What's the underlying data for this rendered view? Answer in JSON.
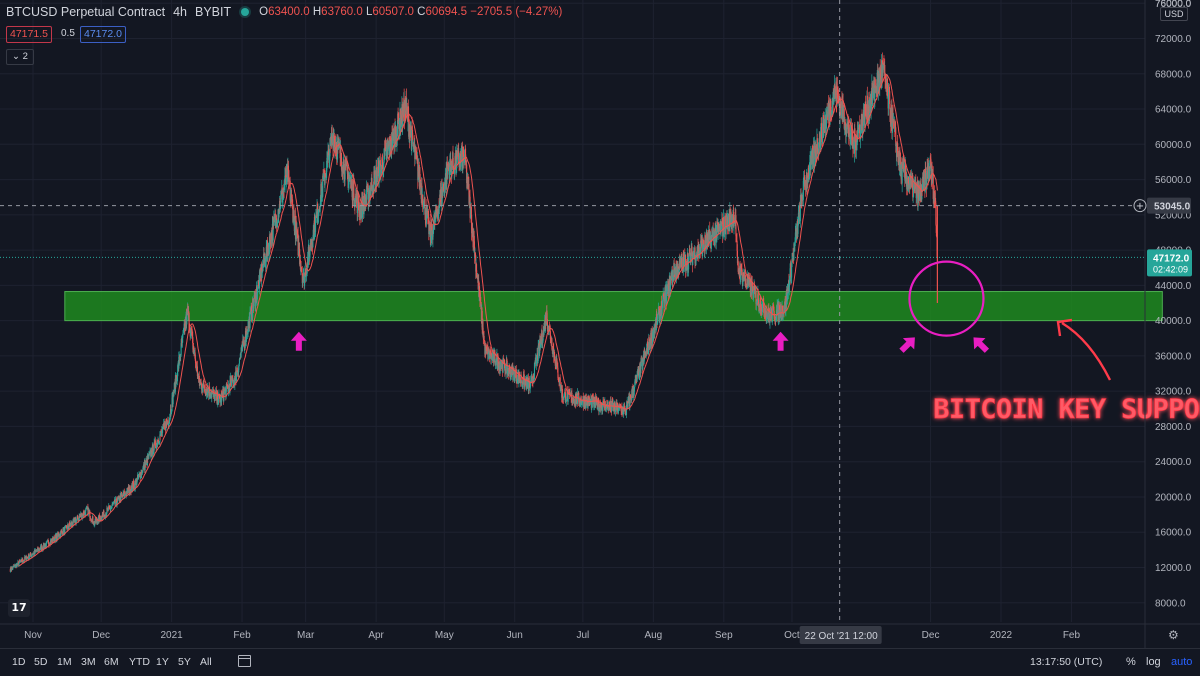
{
  "header": {
    "symbol": "BTCUSD Perpetual Contract",
    "interval": "4h",
    "exchange": "BYBIT",
    "open_label": "O",
    "open": "63400.0",
    "high_label": "H",
    "high": "63760.0",
    "low_label": "L",
    "low": "60507.0",
    "close_label": "C",
    "close": "60694.5",
    "change": "−2705.5 (−4.27%)"
  },
  "order_box": {
    "sell": "47171.5",
    "spread": "0.5",
    "buy": "47172.0"
  },
  "indicators_count": "2",
  "currency": "USD",
  "annotation": {
    "label": "BITCOIN KEY SUPPORT"
  },
  "price_labels": {
    "crosshair_price": "53045.0",
    "last_price": "47172.0",
    "countdown": "02:42:09"
  },
  "crosshair_date": "22 Oct '21",
  "crosshair_time": "12:00",
  "timeframes": [
    "1D",
    "5D",
    "1M",
    "3M",
    "6M",
    "YTD",
    "1Y",
    "5Y",
    "All"
  ],
  "status": {
    "clock": "13:17:50 (UTC)",
    "percent": "%",
    "log": "log",
    "auto": "auto"
  },
  "colors": {
    "up": "#26a69a",
    "down": "#ef5350",
    "ma": "#ef5350",
    "zone": "#1f8a1f",
    "zone_border": "#4caf50",
    "highlight": "#e91ec2",
    "annotation": "#ff3b4a",
    "accent": "#2962ff"
  },
  "icons": {
    "logo": "tradingview-logo-icon",
    "calendar": "calendar-icon",
    "settings": "gear-icon",
    "add": "plus-circle-icon"
  },
  "chart_data": {
    "type": "candlestick",
    "y_axis_ticks": [
      76000,
      72000,
      68000,
      64000,
      60000,
      56000,
      52000,
      48000,
      44000,
      40000,
      36000,
      32000,
      28000,
      24000,
      20000,
      16000,
      12000,
      8000
    ],
    "ylim": [
      4000,
      78000
    ],
    "x_ticks": [
      {
        "label": "Nov",
        "date": "2020-11-01"
      },
      {
        "label": "Dec",
        "date": "2020-12-01"
      },
      {
        "label": "2021",
        "date": "2021-01-01"
      },
      {
        "label": "Feb",
        "date": "2021-02-01"
      },
      {
        "label": "Mar",
        "date": "2021-03-01"
      },
      {
        "label": "Apr",
        "date": "2021-04-01"
      },
      {
        "label": "May",
        "date": "2021-05-01"
      },
      {
        "label": "Jun",
        "date": "2021-06-01"
      },
      {
        "label": "Jul",
        "date": "2021-07-01"
      },
      {
        "label": "Aug",
        "date": "2021-08-01"
      },
      {
        "label": "Sep",
        "date": "2021-09-01"
      },
      {
        "label": "Oct",
        "date": "2021-10-01"
      },
      {
        "label": "Dec",
        "date": "2021-12-01"
      },
      {
        "label": "2022",
        "date": "2022-01-01"
      },
      {
        "label": "Feb",
        "date": "2022-02-01"
      }
    ],
    "xlim": [
      "2020-10-22",
      "2022-03-20"
    ],
    "price_path": [
      [
        "2020-10-22",
        11800
      ],
      [
        "2020-11-10",
        15200
      ],
      [
        "2020-11-25",
        18500
      ],
      [
        "2020-11-28",
        17000
      ],
      [
        "2020-12-16",
        21500
      ],
      [
        "2020-12-31",
        29000
      ],
      [
        "2021-01-08",
        41000
      ],
      [
        "2021-01-13",
        33000
      ],
      [
        "2021-01-22",
        31000
      ],
      [
        "2021-01-29",
        33500
      ],
      [
        "2021-02-10",
        46000
      ],
      [
        "2021-02-21",
        56500
      ],
      [
        "2021-02-28",
        44500
      ],
      [
        "2021-03-13",
        61000
      ],
      [
        "2021-03-25",
        52500
      ],
      [
        "2021-04-05",
        58500
      ],
      [
        "2021-04-14",
        64200
      ],
      [
        "2021-04-25",
        49500
      ],
      [
        "2021-05-03",
        57500
      ],
      [
        "2021-05-10",
        58500
      ],
      [
        "2021-05-19",
        36500
      ],
      [
        "2021-06-08",
        32500
      ],
      [
        "2021-06-15",
        40500
      ],
      [
        "2021-06-22",
        31500
      ],
      [
        "2021-07-20",
        29800
      ],
      [
        "2021-08-10",
        45500
      ],
      [
        "2021-08-25",
        49000
      ],
      [
        "2021-09-06",
        52000
      ],
      [
        "2021-09-07",
        46000
      ],
      [
        "2021-09-21",
        40500
      ],
      [
        "2021-09-28",
        41500
      ],
      [
        "2021-10-06",
        55000
      ],
      [
        "2021-10-20",
        66000
      ],
      [
        "2021-10-28",
        60000
      ],
      [
        "2021-11-10",
        68500
      ],
      [
        "2021-11-18",
        57000
      ],
      [
        "2021-11-26",
        54000
      ],
      [
        "2021-12-01",
        57500
      ],
      [
        "2021-12-03",
        53500
      ],
      [
        "2021-12-04",
        47172
      ]
    ],
    "support_zone": {
      "from_date": "2020-11-15",
      "to_date": "2022-03-13",
      "low": 40000,
      "high": 43300
    },
    "crosshair": {
      "date": "2021-10-22",
      "price": 53045.0
    },
    "last_price": 47172.0,
    "arrows": [
      {
        "date": "2021-02-26",
        "price": 37600,
        "direction": "up"
      },
      {
        "date": "2021-09-26",
        "price": 37600,
        "direction": "up"
      },
      {
        "date": "2021-11-21",
        "price": 37300,
        "direction": "up-right"
      },
      {
        "date": "2021-12-23",
        "price": 37300,
        "direction": "up-left"
      }
    ],
    "circle": {
      "date": "2021-12-08",
      "price": 42500
    }
  }
}
